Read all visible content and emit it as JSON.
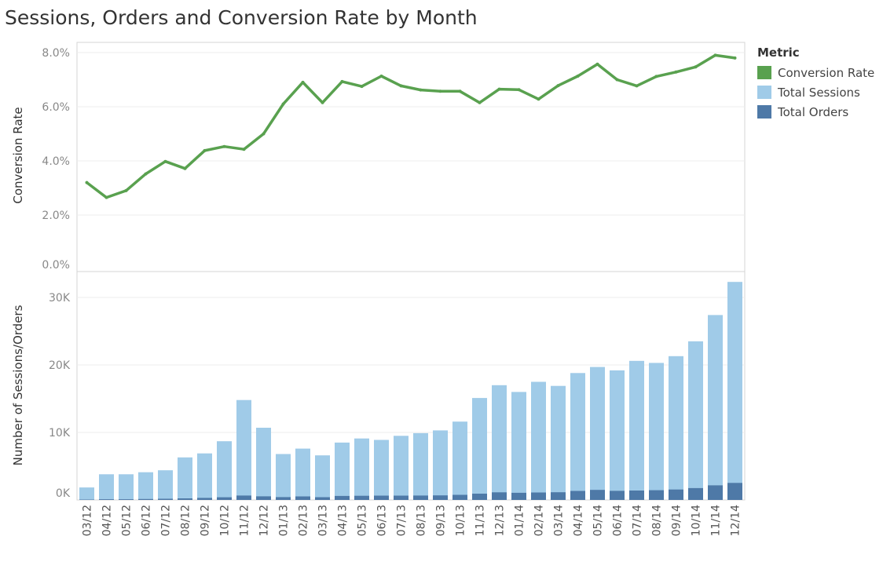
{
  "title": "Sessions, Orders and Conversion Rate by Month",
  "legend": {
    "title": "Metric",
    "items": [
      {
        "label": "Conversion Rate",
        "color": "#59a14f"
      },
      {
        "label": "Total Sessions",
        "color": "#a0cbe8"
      },
      {
        "label": "Total Orders",
        "color": "#4e79a7"
      }
    ]
  },
  "chart_data": [
    {
      "type": "line",
      "ylabel": "Conversion Rate",
      "yticks": [
        "0.0%",
        "2.0%",
        "4.0%",
        "6.0%",
        "8.0%"
      ],
      "ylim": [
        0,
        0.083
      ],
      "color": "#59a14f",
      "series": [
        {
          "name": "Conversion Rate",
          "values": [
            0.032,
            0.0265,
            0.029,
            0.0352,
            0.0398,
            0.0372,
            0.0438,
            0.0453,
            0.0443,
            0.05,
            0.061,
            0.069,
            0.0615,
            0.0693,
            0.0675,
            0.0713,
            0.0677,
            0.0662,
            0.0657,
            0.0657,
            0.0615,
            0.0665,
            0.0663,
            0.0628,
            0.0678,
            0.0713,
            0.0757,
            0.07,
            0.0677,
            0.0712,
            0.0728,
            0.0747,
            0.079,
            0.078
          ]
        }
      ]
    },
    {
      "type": "bar",
      "ylabel": "Number of Sessions/Orders",
      "yticks": [
        "0K",
        "10K",
        "20K",
        "30K"
      ],
      "ylim": [
        0,
        33500
      ],
      "categories": [
        "03/12",
        "04/12",
        "05/12",
        "06/12",
        "07/12",
        "08/12",
        "09/12",
        "10/12",
        "11/12",
        "12/12",
        "01/13",
        "02/13",
        "03/13",
        "04/13",
        "05/13",
        "06/13",
        "07/13",
        "08/13",
        "09/13",
        "10/13",
        "11/13",
        "12/13",
        "01/14",
        "02/14",
        "03/14",
        "04/14",
        "05/14",
        "06/14",
        "07/14",
        "08/14",
        "09/14",
        "10/14",
        "11/14",
        "12/14"
      ],
      "series": [
        {
          "name": "Total Sessions",
          "color": "#a0cbe8",
          "values": [
            1850,
            3800,
            3800,
            4100,
            4400,
            6300,
            6900,
            8700,
            14800,
            10700,
            6800,
            7600,
            6600,
            8500,
            9100,
            8900,
            9500,
            9900,
            10300,
            11600,
            15100,
            17000,
            16000,
            17500,
            16900,
            18800,
            19700,
            19200,
            20600,
            20300,
            21300,
            23500,
            27400,
            32300
          ]
        },
        {
          "name": "Total Orders",
          "color": "#4e79a7",
          "values": [
            60,
            100,
            110,
            145,
            175,
            235,
            300,
            395,
            655,
            535,
            415,
            525,
            405,
            590,
            615,
            635,
            645,
            655,
            675,
            760,
            930,
            1130,
            1060,
            1100,
            1145,
            1340,
            1490,
            1345,
            1395,
            1445,
            1550,
            1755,
            2165,
            2520
          ]
        }
      ]
    }
  ]
}
